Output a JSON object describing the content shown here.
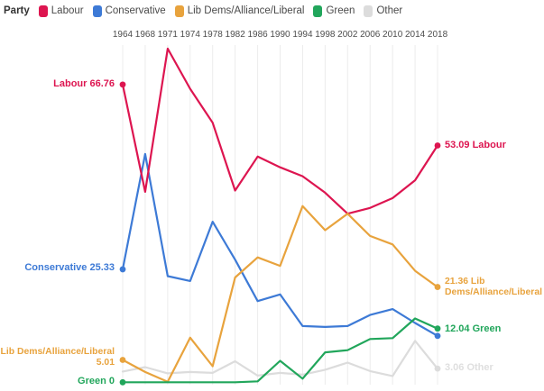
{
  "legend": {
    "title": "Party",
    "items": [
      {
        "label": "Labour",
        "color_key": "labour"
      },
      {
        "label": "Conservative",
        "color_key": "conservative"
      },
      {
        "label": "Lib Dems/Alliance/Liberal",
        "color_key": "libdem"
      },
      {
        "label": "Green",
        "color_key": "green"
      },
      {
        "label": "Other",
        "color_key": "other"
      }
    ]
  },
  "colors": {
    "labour": "#dd1550",
    "conservative": "#3d7ad6",
    "libdem": "#e8a33d",
    "green": "#21a65b",
    "other": "#dcdcdc",
    "other_label": "#dfdfdf",
    "axis_text": "#4d4d4d",
    "grid": "#ececec"
  },
  "annotations": {
    "labour_start": "Labour 66.76",
    "conservative_start": "Conservative 25.33",
    "libdem_start_line1": "Lib Dems/Alliance/Liberal",
    "libdem_start_line2": "5.01",
    "green_start": "Green 0",
    "labour_end": "53.09 Labour",
    "libdem_end_line1": "21.36 Lib",
    "libdem_end_line2": "Dems/Alliance/Liberal",
    "green_end": "12.04 Green",
    "other_end": "3.06 Other"
  },
  "chart_data": {
    "type": "line",
    "title": "",
    "xlabel": "",
    "ylabel": "",
    "x": [
      "1964",
      "1968",
      "1971",
      "1974",
      "1978",
      "1982",
      "1986",
      "1990",
      "1994",
      "1998",
      "2002",
      "2006",
      "2010",
      "2014",
      "2018"
    ],
    "ylim": [
      0,
      76
    ],
    "grid": "vertical-only",
    "legend_position": "top-left",
    "x_axis_position": "top",
    "series": [
      {
        "name": "Other",
        "color_key": "other",
        "start_dot": false,
        "end_dot": true,
        "values": [
          2.4,
          3.4,
          2.0,
          2.3,
          2.1,
          4.7,
          1.5,
          2.1,
          1.7,
          2.8,
          4.4,
          2.5,
          1.4,
          9.3,
          3.06
        ]
      },
      {
        "name": "Conservative",
        "color_key": "conservative",
        "start_dot": true,
        "end_dot": true,
        "values": [
          25.33,
          51.2,
          23.8,
          22.7,
          36.0,
          27.5,
          18.2,
          19.7,
          12.6,
          12.4,
          12.6,
          15.1,
          16.4,
          13.3,
          10.4
        ]
      },
      {
        "name": "Labour",
        "color_key": "labour",
        "start_dot": true,
        "end_dot": true,
        "values": [
          66.76,
          42.7,
          74.8,
          65.8,
          58.2,
          43.0,
          50.6,
          48.2,
          46.2,
          42.5,
          37.8,
          39.1,
          41.3,
          45.3,
          53.09
        ]
      },
      {
        "name": "Lib Dems/Alliance/Liberal",
        "color_key": "libdem",
        "start_dot": true,
        "end_dot": true,
        "values": [
          5.01,
          2.3,
          0.1,
          10.0,
          3.6,
          23.5,
          28.0,
          26.1,
          39.5,
          34.1,
          37.8,
          32.8,
          30.9,
          25.0,
          21.36
        ]
      },
      {
        "name": "Green",
        "color_key": "green",
        "start_dot": true,
        "end_dot": true,
        "values": [
          0,
          0,
          0,
          0,
          0,
          0,
          0.2,
          4.8,
          0.8,
          6.7,
          7.2,
          9.7,
          9.9,
          14.3,
          12.04
        ]
      }
    ]
  }
}
